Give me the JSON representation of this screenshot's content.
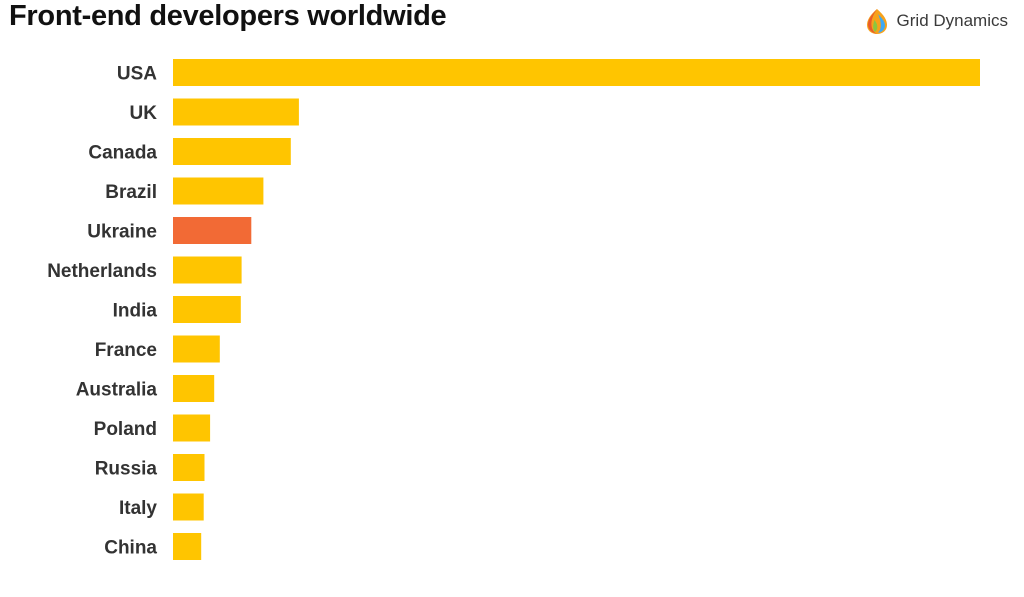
{
  "header": {
    "title": "Front-end developers worldwide"
  },
  "logo": {
    "text": "Grid Dynamics",
    "icon": "grid-dynamics-logo-icon"
  },
  "colors": {
    "bar": "#FFC500",
    "highlight": "#F26A35",
    "label": "#333333"
  },
  "chart_data": {
    "type": "bar",
    "orientation": "horizontal",
    "title": "Front-end developers worldwide",
    "xlabel": "",
    "ylabel": "",
    "grid": false,
    "categories": [
      "USA",
      "UK",
      "Canada",
      "Brazil",
      "Ukraine",
      "Netherlands",
      "India",
      "France",
      "Australia",
      "Poland",
      "Russia",
      "Italy",
      "China"
    ],
    "values": [
      100,
      15.6,
      14.6,
      11.2,
      9.7,
      8.5,
      8.4,
      5.8,
      5.1,
      4.6,
      3.9,
      3.8,
      3.5
    ],
    "xlim": [
      0,
      100
    ],
    "highlight": "Ukraine"
  }
}
